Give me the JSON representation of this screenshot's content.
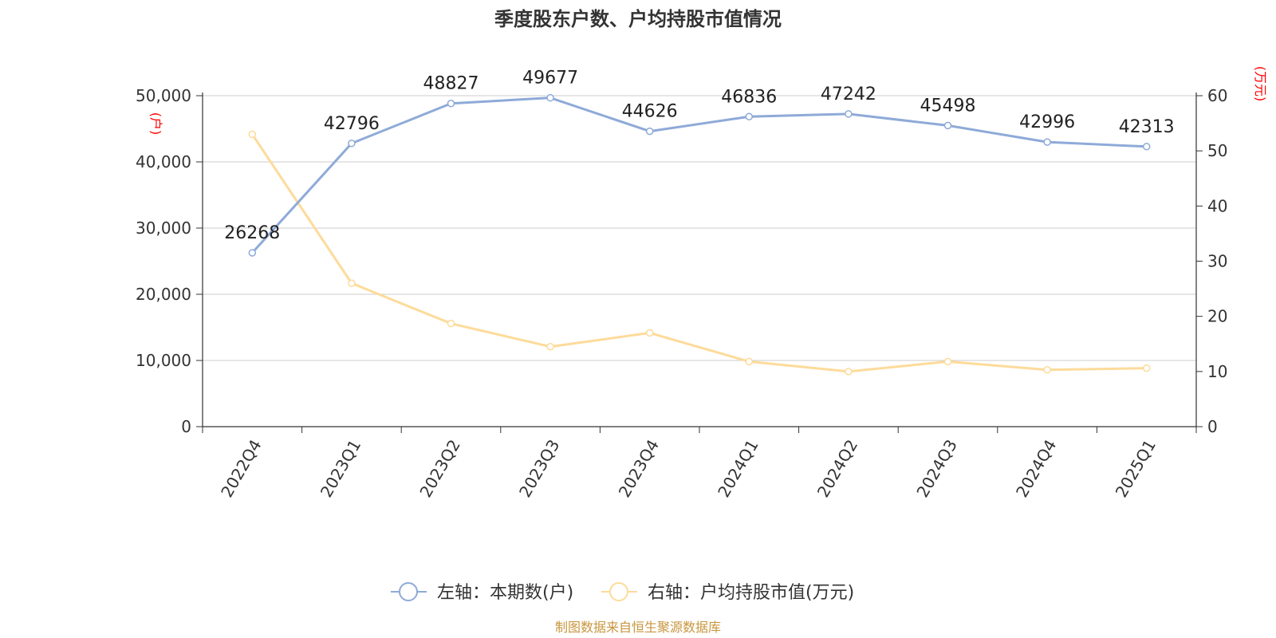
{
  "chart_data": {
    "type": "line",
    "title": "季度股东户数、户均持股市值情况",
    "categories": [
      "2022Q4",
      "2023Q1",
      "2023Q2",
      "2023Q3",
      "2023Q4",
      "2024Q1",
      "2024Q2",
      "2024Q3",
      "2024Q4",
      "2025Q1"
    ],
    "series": [
      {
        "name": "左轴：本期数(户)",
        "axis": "left",
        "color": "#8eaad8",
        "values": [
          26268,
          42796,
          48827,
          49677,
          44626,
          46836,
          47242,
          45498,
          42996,
          42313
        ],
        "labels": [
          "26268",
          "42796",
          "48827",
          "49677",
          "44626",
          "46836",
          "47242",
          "45498",
          "42996",
          "42313"
        ]
      },
      {
        "name": "右轴：户均持股市值(万元)",
        "axis": "right",
        "color": "#fddb9a",
        "values": [
          53.0,
          26.0,
          18.7,
          14.5,
          17.0,
          11.8,
          10.0,
          11.8,
          10.3,
          10.6
        ]
      }
    ],
    "y_left": {
      "unit": "(户)",
      "ylim": [
        0,
        50000
      ],
      "ticks": [
        0,
        10000,
        20000,
        30000,
        40000,
        50000
      ],
      "tick_labels": [
        "0",
        "10,000",
        "20,000",
        "30,000",
        "40,000",
        "50,000"
      ]
    },
    "y_right": {
      "unit": "(万元)",
      "ylim": [
        0,
        60
      ],
      "ticks": [
        0,
        10,
        20,
        30,
        40,
        50,
        60
      ],
      "tick_labels": [
        "0",
        "10",
        "20",
        "30",
        "40",
        "50",
        "60"
      ]
    },
    "grid": true,
    "legend_position": "bottom-center",
    "source": "制图数据来自恒生聚源数据库"
  }
}
